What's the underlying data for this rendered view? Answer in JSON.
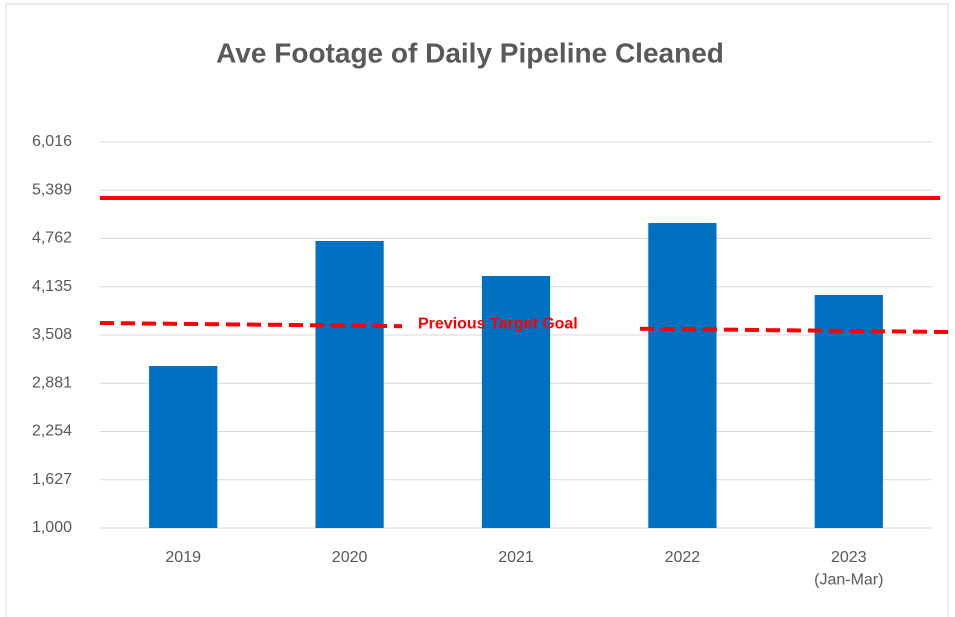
{
  "chart_data": {
    "type": "bar",
    "title": "Ave Footage of Daily Pipeline Cleaned",
    "categories": [
      "2019",
      "2020",
      "2021",
      "2022",
      "2023\n(Jan-Mar)"
    ],
    "values": [
      3105,
      4730,
      4275,
      4963,
      4028
    ],
    "color": "#0070c0",
    "ylim": [
      1000,
      6016
    ],
    "yticks": [
      {
        "value": 1000,
        "label": "1,000"
      },
      {
        "value": 1627,
        "label": "1,627"
      },
      {
        "value": 2254,
        "label": "2,254"
      },
      {
        "value": 2881,
        "label": "2,881"
      },
      {
        "value": 3508,
        "label": "3,508"
      },
      {
        "value": 4135,
        "label": "4,135"
      },
      {
        "value": 4762,
        "label": "4,762"
      },
      {
        "value": 5389,
        "label": "5,389"
      },
      {
        "value": 6016,
        "label": "6,016"
      }
    ],
    "grid": true,
    "reference_lines": [
      {
        "values": [
          5288,
          5288
        ],
        "color": "#ff0000",
        "dashed": false
      },
      {
        "label": "Previous Target Goal",
        "values": [
          3664,
          3547
        ],
        "color": "#ff0000",
        "dashed": true
      }
    ]
  }
}
